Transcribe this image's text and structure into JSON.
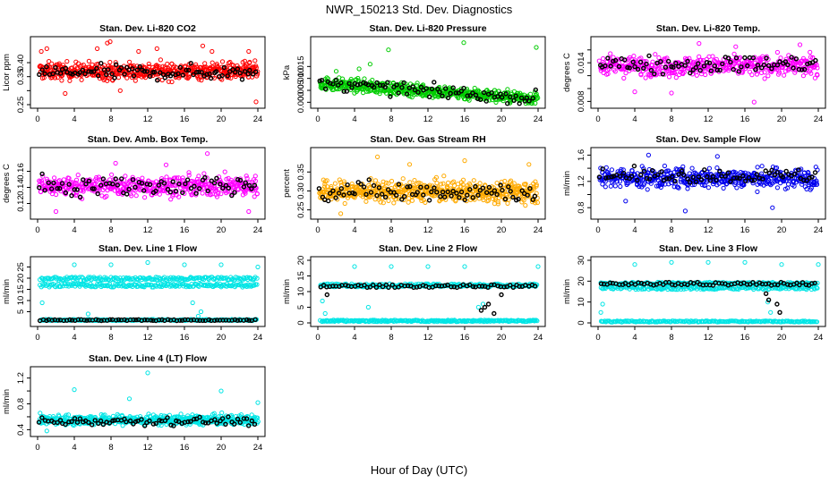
{
  "figure": {
    "title": "NWR_150213 Std. Dev. Diagnostics",
    "xlabel": "Hour of Day (UTC)"
  },
  "chart_data": [
    {
      "type": "scatter",
      "title": "Stan. Dev. Li-820 CO2",
      "ylabel": "Licor ppm",
      "xlim": [
        0,
        24
      ],
      "ylim": [
        0.25,
        0.48
      ],
      "xticks": [
        0,
        4,
        8,
        12,
        16,
        20,
        24
      ],
      "yticks": [
        0.25,
        0.3,
        0.35,
        0.4
      ],
      "ytick_labels": [
        "0.25",
        "",
        "0.35",
        "0.40"
      ],
      "series": [
        {
          "color": "#ff0000",
          "dense": true,
          "band": [
            0.33,
            0.41
          ],
          "count": 520,
          "outliers": [
            [
              0.4,
              0.44
            ],
            [
              1,
              0.45
            ],
            [
              6.5,
              0.45
            ],
            [
              7.6,
              0.47
            ],
            [
              7.9,
              0.475
            ],
            [
              11,
              0.44
            ],
            [
              13,
              0.45
            ],
            [
              18,
              0.46
            ],
            [
              19,
              0.44
            ],
            [
              23,
              0.44
            ],
            [
              23.8,
              0.26
            ],
            [
              3,
              0.29
            ],
            [
              9,
              0.3
            ]
          ]
        },
        {
          "color": "#000000",
          "dense": false,
          "band": [
            0.33,
            0.4
          ],
          "count": 85,
          "outliers": []
        }
      ]
    },
    {
      "type": "scatter",
      "title": "Stan. Dev. Li-820 Pressure",
      "ylabel": "kPa",
      "xlim": [
        0,
        24
      ],
      "ylim": [
        -0.001,
        0.026
      ],
      "xticks": [
        0,
        4,
        8,
        12,
        16,
        20,
        24
      ],
      "yticks": [
        0.0,
        0.005,
        0.01,
        0.015
      ],
      "ytick_labels": [
        "0.000",
        "0.005",
        "0.010",
        "0.015"
      ],
      "series": [
        {
          "color": "#00cc00",
          "dense": true,
          "band": [
            0.001,
            0.008
          ],
          "trend": [
            0.008,
            0.0015
          ],
          "count": 520,
          "outliers": [
            [
              7.7,
              0.022
            ],
            [
              15.9,
              0.025
            ],
            [
              23.8,
              0.023
            ],
            [
              5.7,
              0.016
            ],
            [
              4.5,
              0.014
            ],
            [
              2,
              0.013
            ]
          ]
        },
        {
          "color": "#000000",
          "dense": false,
          "band": [
            0.001,
            0.008
          ],
          "trend": [
            0.008,
            0.0015
          ],
          "count": 80,
          "outliers": []
        }
      ]
    },
    {
      "type": "scatter",
      "title": "Stan. Dev. Li-820 Temp.",
      "ylabel": "degrees C",
      "xlim": [
        0,
        24
      ],
      "ylim": [
        0.0075,
        0.0175
      ],
      "xticks": [
        0,
        4,
        8,
        12,
        16,
        20,
        24
      ],
      "yticks": [
        0.008,
        0.01,
        0.012,
        0.014,
        0.016
      ],
      "ytick_labels": [
        "0.008",
        "",
        "",
        "0.014",
        ""
      ],
      "series": [
        {
          "color": "#ff00ff",
          "dense": true,
          "band": [
            0.0115,
            0.0155
          ],
          "count": 460,
          "outliers": [
            [
              8,
              0.0093
            ],
            [
              11,
              0.017
            ],
            [
              15,
              0.0165
            ],
            [
              4,
              0.0095
            ],
            [
              17,
              0.0079
            ],
            [
              22,
              0.0168
            ]
          ]
        },
        {
          "color": "#000000",
          "dense": false,
          "band": [
            0.012,
            0.0155
          ],
          "count": 80,
          "outliers": []
        }
      ]
    },
    {
      "type": "scatter",
      "title": "Stan. Dev. Amb. Box Temp.",
      "ylabel": "degrees C",
      "xlim": [
        0,
        24
      ],
      "ylim": [
        0.105,
        0.185
      ],
      "xticks": [
        0,
        4,
        8,
        12,
        16,
        20,
        24
      ],
      "yticks": [
        0.12,
        0.14,
        0.16
      ],
      "ytick_labels": [
        "0.12",
        "0.14",
        "0.16"
      ],
      "series": [
        {
          "color": "#ff00ff",
          "dense": true,
          "band": [
            0.125,
            0.158
          ],
          "count": 480,
          "outliers": [
            [
              18.5,
              0.182
            ],
            [
              8.5,
              0.17
            ],
            [
              14,
              0.168
            ],
            [
              23,
              0.11
            ],
            [
              2,
              0.11
            ]
          ]
        },
        {
          "color": "#000000",
          "dense": false,
          "band": [
            0.125,
            0.16
          ],
          "count": 75,
          "outliers": []
        }
      ]
    },
    {
      "type": "scatter",
      "title": "Stan. Dev. Gas Stream RH",
      "ylabel": "percent",
      "xlim": [
        0,
        24
      ],
      "ylim": [
        0.235,
        0.405
      ],
      "xticks": [
        0,
        4,
        8,
        12,
        16,
        20,
        24
      ],
      "yticks": [
        0.25,
        0.3,
        0.35
      ],
      "ytick_labels": [
        "0.25",
        "0.30",
        "0.35"
      ],
      "series": [
        {
          "color": "#ffaa00",
          "dense": true,
          "band": [
            0.262,
            0.335
          ],
          "count": 560,
          "outliers": [
            [
              6.5,
              0.39
            ],
            [
              10,
              0.37
            ],
            [
              16,
              0.38
            ],
            [
              2.5,
              0.24
            ],
            [
              23,
              0.37
            ]
          ]
        },
        {
          "color": "#000000",
          "dense": false,
          "band": [
            0.262,
            0.335
          ],
          "count": 80,
          "outliers": []
        }
      ]
    },
    {
      "type": "scatter",
      "title": "Stan. Dev. Sample Flow",
      "ylabel": "ml/min",
      "xlim": [
        0,
        24
      ],
      "ylim": [
        0.68,
        1.66
      ],
      "xticks": [
        0,
        4,
        8,
        12,
        16,
        20,
        24
      ],
      "yticks": [
        0.8,
        1.0,
        1.2,
        1.4,
        1.6
      ],
      "ytick_labels": [
        "0.8",
        "",
        "1.2",
        "",
        "1.6"
      ],
      "series": [
        {
          "color": "#0000ee",
          "dense": true,
          "band": [
            1.05,
            1.45
          ],
          "count": 480,
          "outliers": [
            [
              9.5,
              0.75
            ],
            [
              5.5,
              1.6
            ],
            [
              13,
              1.58
            ],
            [
              19,
              0.8
            ],
            [
              3,
              0.9
            ]
          ]
        },
        {
          "color": "#000000",
          "dense": false,
          "band": [
            1.15,
            1.42
          ],
          "count": 75,
          "outliers": []
        }
      ]
    },
    {
      "type": "scatter",
      "title": "Stan. Dev. Line 1 Flow",
      "ylabel": "ml/min",
      "xlim": [
        0,
        24
      ],
      "ylim": [
        0,
        28
      ],
      "xticks": [
        0,
        4,
        8,
        12,
        16,
        20,
        24
      ],
      "yticks": [
        5,
        10,
        15,
        20,
        25
      ],
      "ytick_labels": [
        "5",
        "10",
        "15",
        "20",
        "25"
      ],
      "series": [
        {
          "color": "#00e5e5",
          "bands": [
            [
              16,
              17.5
            ],
            [
              19,
              20.5
            ],
            [
              1.0,
              1.6
            ]
          ],
          "count": 600,
          "outliers": [
            [
              4,
              26
            ],
            [
              8,
              26
            ],
            [
              12,
              27
            ],
            [
              16,
              26
            ],
            [
              20,
              26
            ],
            [
              24,
              25
            ],
            [
              0.5,
              9
            ],
            [
              5.5,
              4
            ],
            [
              17.5,
              3
            ],
            [
              17.8,
              5
            ],
            [
              16.9,
              9
            ]
          ]
        },
        {
          "color": "#000000",
          "bands": [
            [
              1.0,
              1.5
            ]
          ],
          "count": 75,
          "outliers": []
        }
      ]
    },
    {
      "type": "scatter",
      "title": "Stan. Dev. Line 2 Flow",
      "ylabel": "ml/min",
      "xlim": [
        0,
        24
      ],
      "ylim": [
        0,
        20
      ],
      "xticks": [
        0,
        4,
        8,
        12,
        16,
        20,
        24
      ],
      "yticks": [
        0,
        5,
        10,
        15,
        20
      ],
      "ytick_labels": [
        "0",
        "5",
        "10",
        "15",
        "20"
      ],
      "series": [
        {
          "color": "#00e5e5",
          "bands": [
            [
              11.5,
              12.5
            ],
            [
              0.4,
              0.9
            ]
          ],
          "count": 500,
          "outliers": [
            [
              4,
              18
            ],
            [
              8,
              18
            ],
            [
              12,
              18
            ],
            [
              16,
              18
            ],
            [
              24,
              18
            ],
            [
              0.5,
              7
            ],
            [
              0.8,
              3
            ],
            [
              5.5,
              5
            ],
            [
              17.5,
              5
            ],
            [
              18,
              6
            ]
          ]
        },
        {
          "color": "#000000",
          "bands": [
            [
              11.3,
              12.2
            ]
          ],
          "count": 70,
          "outliers": [
            [
              1,
              9
            ],
            [
              17.8,
              4
            ],
            [
              18.2,
              5
            ],
            [
              18.6,
              6
            ],
            [
              19.2,
              3
            ],
            [
              20,
              9
            ]
          ]
        }
      ]
    },
    {
      "type": "scatter",
      "title": "Stan. Dev. Line 3 Flow",
      "ylabel": "ml/min",
      "xlim": [
        0,
        24
      ],
      "ylim": [
        0,
        30
      ],
      "xticks": [
        0,
        4,
        8,
        12,
        16,
        20,
        24
      ],
      "yticks": [
        0,
        10,
        20,
        30
      ],
      "ytick_labels": [
        "0",
        "10",
        "20",
        "30"
      ],
      "series": [
        {
          "color": "#00e5e5",
          "bands": [
            [
              16,
              17.5
            ],
            [
              18.5,
              19.5
            ],
            [
              0.4,
              1.0
            ]
          ],
          "count": 560,
          "outliers": [
            [
              4,
              28
            ],
            [
              8,
              29
            ],
            [
              12,
              29
            ],
            [
              16,
              29
            ],
            [
              20,
              28
            ],
            [
              24,
              28
            ],
            [
              0.3,
              5
            ],
            [
              0.5,
              9
            ],
            [
              18.5,
              10
            ],
            [
              18.8,
              5
            ]
          ]
        },
        {
          "color": "#000000",
          "bands": [
            [
              18,
              19.5
            ]
          ],
          "count": 70,
          "outliers": [
            [
              18.3,
              14
            ],
            [
              18.6,
              11
            ],
            [
              19.8,
              5
            ],
            [
              19.5,
              9
            ]
          ]
        }
      ]
    },
    {
      "type": "scatter",
      "title": "Stan. Dev. Line 4 (LT) Flow",
      "ylabel": "ml/min",
      "xlim": [
        0,
        24
      ],
      "ylim": [
        0.35,
        1.32
      ],
      "xticks": [
        0,
        4,
        8,
        12,
        16,
        20,
        24
      ],
      "yticks": [
        0.4,
        0.6,
        0.8,
        1.0,
        1.2
      ],
      "ytick_labels": [
        "0.4",
        "",
        "0.8",
        "",
        "1.2"
      ],
      "series": [
        {
          "color": "#00e5e5",
          "dense": true,
          "band": [
            0.45,
            0.65
          ],
          "count": 560,
          "outliers": [
            [
              12,
              1.28
            ],
            [
              4,
              1.02
            ],
            [
              20,
              1.0
            ],
            [
              24,
              0.82
            ],
            [
              10,
              0.88
            ],
            [
              1,
              0.38
            ]
          ]
        },
        {
          "color": "#000000",
          "dense": false,
          "band": [
            0.45,
            0.62
          ],
          "count": 75,
          "outliers": []
        }
      ]
    }
  ]
}
